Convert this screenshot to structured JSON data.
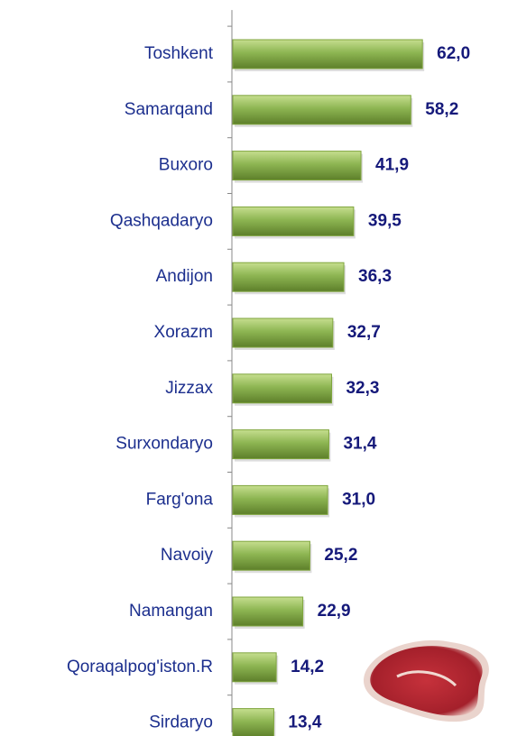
{
  "chart_data": {
    "type": "bar",
    "orientation": "horizontal",
    "categories": [
      "Toshkent",
      "Samarqand",
      "Buxoro",
      "Qashqadaryo",
      "Andijon",
      "Xorazm",
      "Jizzax",
      "Surxondaryo",
      "Farg'ona",
      "Navoiy",
      "Namangan",
      "Qoraqalpog'iston.R",
      "Sirdaryo"
    ],
    "values": [
      62.0,
      58.2,
      41.9,
      39.5,
      36.3,
      32.7,
      32.3,
      31.4,
      31.0,
      25.2,
      22.9,
      14.2,
      13.4
    ],
    "value_labels": [
      "62,0",
      "58,2",
      "41,9",
      "39,5",
      "36,3",
      "32,7",
      "32,3",
      "31,4",
      "31,0",
      "25,2",
      "22,9",
      "14,2",
      "13,4"
    ],
    "color": "#7fa53e"
  }
}
